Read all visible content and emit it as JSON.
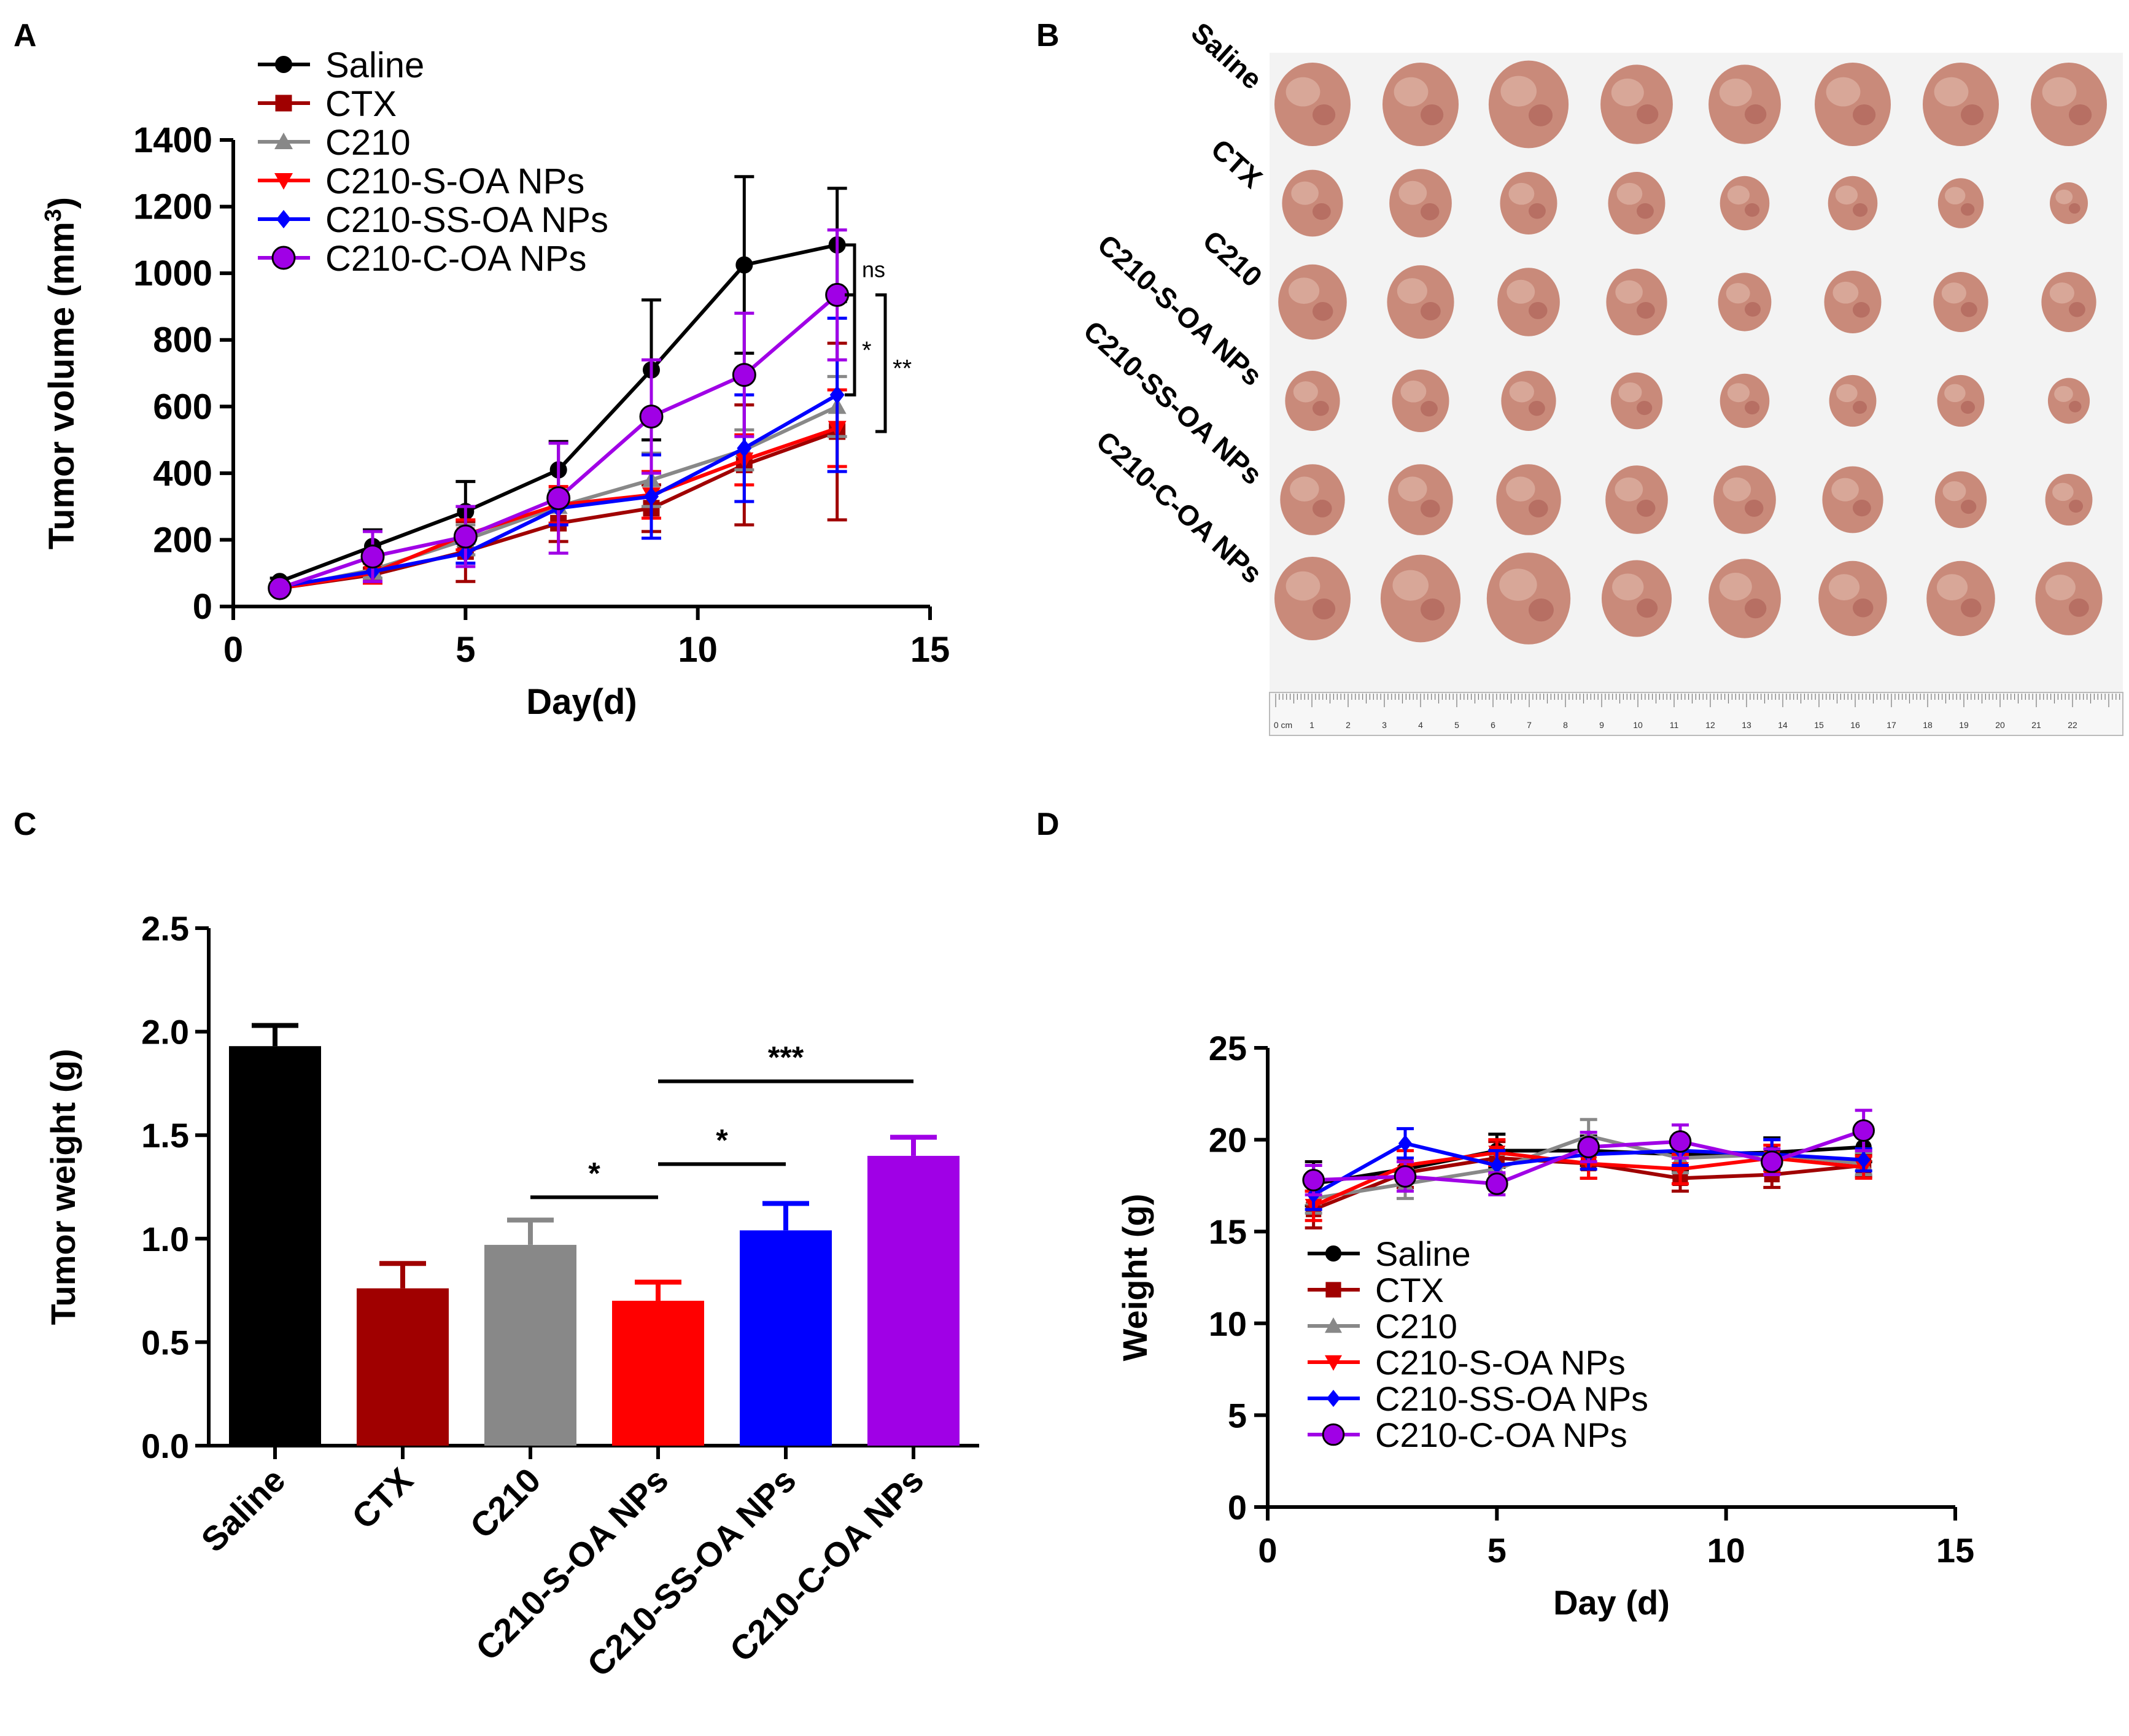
{
  "colors": {
    "saline": "#000000",
    "ctx": "#a00000",
    "c210": "#888888",
    "c210_s_oa": "#ff0000",
    "c210_ss_oa": "#0000ff",
    "c210_c_oa": "#a000e6",
    "background": "#ffffff",
    "photo_bg": "#f3f3f3",
    "tumor": "#c98a7a"
  },
  "panels": {
    "a": {
      "letter": "A"
    },
    "b": {
      "letter": "B"
    },
    "c": {
      "letter": "C"
    },
    "d": {
      "letter": "D"
    }
  },
  "photo": {
    "row_labels": [
      "Saline",
      "CTX",
      "C210",
      "C210-S-OA NPs",
      "C210-SS-OA NPs",
      "C210-C-OA NPs"
    ],
    "ruler_labels": [
      "0 cm",
      "1",
      "2",
      "3",
      "4",
      "5",
      "6",
      "7",
      "8",
      "9",
      "10",
      "11",
      "12",
      "13",
      "14",
      "15",
      "16",
      "17",
      "18",
      "19",
      "20",
      "21",
      "22"
    ],
    "tumor_scale": [
      [
        1.0,
        1.0,
        1.05,
        0.95,
        0.95,
        1.0,
        1.0,
        1.0
      ],
      [
        0.8,
        0.82,
        0.75,
        0.75,
        0.65,
        0.65,
        0.6,
        0.5
      ],
      [
        0.9,
        0.88,
        0.82,
        0.8,
        0.7,
        0.75,
        0.72,
        0.72
      ],
      [
        0.72,
        0.75,
        0.72,
        0.68,
        0.65,
        0.62,
        0.62,
        0.55
      ],
      [
        0.85,
        0.85,
        0.85,
        0.82,
        0.82,
        0.8,
        0.68,
        0.62
      ],
      [
        1.0,
        1.05,
        1.1,
        0.92,
        0.95,
        0.9,
        0.9,
        0.88
      ]
    ]
  },
  "chart_data": [
    {
      "panel": "A",
      "type": "line",
      "title": "",
      "xlabel": "Day(d)",
      "ylabel": "Tumor volume (mm",
      "ylabel_sup": "3",
      "ylabel_end": ")",
      "xlim": [
        0,
        15
      ],
      "ylim": [
        0,
        1400
      ],
      "xticks": [
        0,
        5,
        10,
        15
      ],
      "yticks": [
        0,
        200,
        400,
        600,
        800,
        1000,
        1200,
        1400
      ],
      "x": [
        1,
        3,
        5,
        7,
        9,
        11,
        13
      ],
      "legend_position": "top-left",
      "series": [
        {
          "name": "Saline",
          "key": "saline",
          "marker": "circle",
          "values": [
            75,
            180,
            285,
            410,
            710,
            1025,
            1085
          ],
          "errors": [
            10,
            50,
            90,
            85,
            210,
            265,
            170
          ]
        },
        {
          "name": "CTX",
          "key": "ctx",
          "marker": "square",
          "values": [
            55,
            95,
            165,
            250,
            295,
            425,
            525
          ],
          "errors": [
            5,
            20,
            90,
            55,
            70,
            180,
            265
          ]
        },
        {
          "name": "C210",
          "key": "c210",
          "marker": "triangle-up",
          "values": [
            55,
            110,
            200,
            300,
            380,
            470,
            600
          ],
          "errors": [
            5,
            25,
            45,
            50,
            80,
            60,
            90
          ]
        },
        {
          "name": "C210-S-OA NPs",
          "key": "c210_s_oa",
          "marker": "triangle-down",
          "values": [
            55,
            100,
            215,
            305,
            335,
            440,
            535
          ],
          "errors": [
            5,
            30,
            45,
            55,
            70,
            75,
            115
          ]
        },
        {
          "name": "C210-SS-OA NPs",
          "key": "c210_ss_oa",
          "marker": "diamond",
          "values": [
            60,
            105,
            160,
            295,
            330,
            475,
            635
          ],
          "errors": [
            5,
            30,
            30,
            50,
            125,
            160,
            230
          ]
        },
        {
          "name": "C210-C-OA  NPs",
          "key": "c210_c_oa",
          "marker": "circle",
          "values": [
            55,
            150,
            210,
            325,
            570,
            695,
            935
          ],
          "errors": [
            5,
            75,
            90,
            165,
            170,
            185,
            195
          ]
        }
      ],
      "annotations": [
        {
          "text": "ns",
          "y_top": 1085,
          "y_bottom": 935,
          "level": 1
        },
        {
          "text": "*",
          "y_top": 935,
          "y_bottom": 635,
          "level": 1
        },
        {
          "text": "**",
          "y_top": 935,
          "y_bottom": 525,
          "level": 2
        }
      ]
    },
    {
      "panel": "C",
      "type": "bar",
      "title": "",
      "xlabel": "",
      "ylabel": "Tumor weight (g)",
      "ylim": [
        0,
        2.5
      ],
      "yticks": [
        "0.0",
        "0.5",
        "1.0",
        "1.5",
        "2.0",
        "2.5"
      ],
      "categories": [
        "Saline",
        "CTX",
        "C210",
        "C210-S-OA NPs",
        "C210-SS-OA NPs",
        "C210-C-OA NPs"
      ],
      "keys": [
        "saline",
        "ctx",
        "c210",
        "c210_s_oa",
        "c210_ss_oa",
        "c210_c_oa"
      ],
      "values": [
        1.93,
        0.76,
        0.97,
        0.7,
        1.04,
        1.4
      ],
      "errors": [
        0.1,
        0.12,
        0.12,
        0.09,
        0.13,
        0.09
      ],
      "annotations": [
        {
          "text": "*",
          "from": 2,
          "to": 3,
          "y": 1.2
        },
        {
          "text": "*",
          "from": 3,
          "to": 4,
          "y": 1.36
        },
        {
          "text": "***",
          "from": 3,
          "to": 5,
          "y": 1.76
        }
      ]
    },
    {
      "panel": "D",
      "type": "line",
      "title": "",
      "xlabel": "Day (d)",
      "ylabel": "Weight (g)",
      "xlim": [
        0,
        15
      ],
      "ylim": [
        0,
        25
      ],
      "xticks": [
        0,
        5,
        10,
        15
      ],
      "yticks": [
        0,
        5,
        10,
        15,
        20,
        25
      ],
      "x": [
        1,
        3,
        5,
        7,
        9,
        11,
        13
      ],
      "legend_position": "bottom-left",
      "series": [
        {
          "name": "Saline",
          "key": "saline",
          "marker": "circle",
          "values": [
            17.6,
            18.4,
            19.4,
            19.4,
            19.2,
            19.3,
            19.6
          ],
          "errors": [
            1.2,
            1.0,
            0.9,
            0.8,
            0.9,
            0.8,
            0.8
          ]
        },
        {
          "name": "CTX",
          "key": "ctx",
          "marker": "square",
          "values": [
            16.2,
            18.2,
            19.0,
            18.7,
            17.9,
            18.1,
            18.6
          ],
          "errors": [
            1.0,
            0.8,
            0.9,
            0.8,
            0.7,
            0.7,
            0.6
          ]
        },
        {
          "name": "C210",
          "key": "c210",
          "marker": "triangle-up",
          "values": [
            16.8,
            17.6,
            18.4,
            20.2,
            19.0,
            19.2,
            18.7
          ],
          "errors": [
            0.8,
            0.8,
            0.8,
            0.9,
            0.8,
            0.8,
            0.6
          ]
        },
        {
          "name": "C210-S-OA NPs",
          "key": "c210_s_oa",
          "marker": "triangle-down",
          "values": [
            16.4,
            18.6,
            19.3,
            18.7,
            18.4,
            19.0,
            18.5
          ],
          "errors": [
            0.8,
            0.8,
            0.7,
            0.8,
            0.8,
            0.7,
            0.6
          ]
        },
        {
          "name": "C210-SS-OA NPs",
          "key": "c210_ss_oa",
          "marker": "diamond",
          "values": [
            17.0,
            19.8,
            18.6,
            19.2,
            19.4,
            19.2,
            18.9
          ],
          "errors": [
            0.8,
            0.8,
            0.8,
            0.8,
            0.8,
            0.8,
            0.6
          ]
        },
        {
          "name": "C210-C-OA NPs",
          "key": "c210_c_oa",
          "marker": "circle",
          "values": [
            17.8,
            18.0,
            17.6,
            19.6,
            19.9,
            18.8,
            20.5
          ],
          "errors": [
            0.8,
            0.8,
            0.6,
            0.8,
            0.9,
            0.7,
            1.1
          ]
        }
      ]
    }
  ]
}
